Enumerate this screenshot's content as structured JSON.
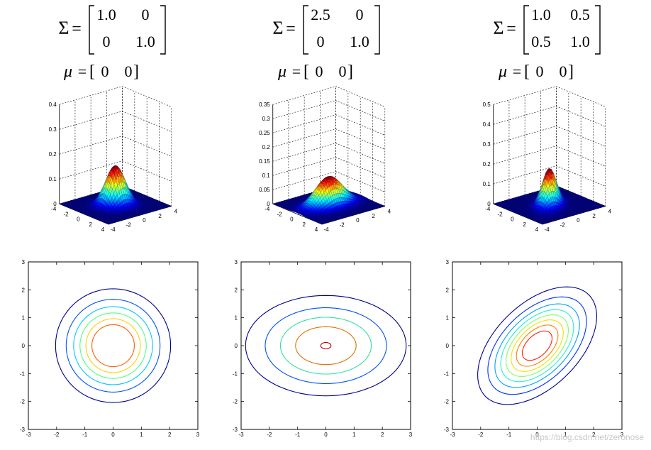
{
  "chart_data": [
    {
      "type": "surface",
      "panel": "top-left",
      "sigma_symbol": "Σ",
      "mu_symbol": "μ",
      "sigma": [
        [
          "1.0",
          "0"
        ],
        [
          "0",
          "1.0"
        ]
      ],
      "mu": [
        "0",
        "0"
      ],
      "cov": [
        [
          1.0,
          0.0
        ],
        [
          0.0,
          1.0
        ]
      ],
      "mean": [
        0,
        0
      ],
      "zlim": [
        0,
        0.4
      ],
      "zticks": [
        "0",
        "0.1",
        "0.2",
        "0.3",
        "0.4"
      ],
      "xticks": [
        "-4",
        "-2",
        "0",
        "2",
        "4"
      ],
      "yticks": [
        "-4",
        "-2",
        "0",
        "2",
        "4"
      ],
      "colormap": "jet",
      "grid": true
    },
    {
      "type": "surface",
      "panel": "top-middle",
      "sigma_symbol": "Σ",
      "mu_symbol": "μ",
      "sigma": [
        [
          "2.5",
          "0"
        ],
        [
          "0",
          "1.0"
        ]
      ],
      "mu": [
        "0",
        "0"
      ],
      "cov": [
        [
          2.5,
          0.0
        ],
        [
          0.0,
          1.0
        ]
      ],
      "mean": [
        0,
        0
      ],
      "zlim": [
        0,
        0.35
      ],
      "zticks": [
        "0",
        "0.05",
        "0.1",
        "0.15",
        "0.2",
        "0.25",
        "0.3",
        "0.35"
      ],
      "xticks": [
        "-4",
        "-2",
        "0",
        "2",
        "4"
      ],
      "yticks": [
        "-4",
        "-2",
        "0",
        "2",
        "4"
      ],
      "colormap": "jet",
      "grid": true
    },
    {
      "type": "surface",
      "panel": "top-right",
      "sigma_symbol": "Σ",
      "mu_symbol": "μ",
      "sigma": [
        [
          "1.0",
          "0.5"
        ],
        [
          "0.5",
          "1.0"
        ]
      ],
      "mu": [
        "0",
        "0"
      ],
      "cov": [
        [
          1.0,
          0.5
        ],
        [
          0.5,
          1.0
        ]
      ],
      "mean": [
        0,
        0
      ],
      "zlim": [
        0,
        0.5
      ],
      "zticks": [
        "0",
        "0.1",
        "0.2",
        "0.3",
        "0.4",
        "0.5"
      ],
      "xticks": [
        "-4",
        "-2",
        "0",
        "2",
        "4"
      ],
      "yticks": [
        "-4",
        "-2",
        "0",
        "2",
        "4"
      ],
      "colormap": "jet",
      "grid": true
    },
    {
      "type": "contour",
      "panel": "bottom-left",
      "cov": [
        [
          1.0,
          0.0
        ],
        [
          0.0,
          1.0
        ]
      ],
      "mean": [
        0,
        0
      ],
      "xlim": [
        -3,
        3
      ],
      "ylim": [
        -3,
        3
      ],
      "xticks": [
        "-3",
        "-2",
        "-1",
        "0",
        "1",
        "2",
        "3"
      ],
      "yticks": [
        "-3",
        "-2",
        "-1",
        "0",
        "1",
        "2",
        "3"
      ],
      "levels": [
        0.02,
        0.04,
        0.06,
        0.08,
        0.1,
        0.12
      ],
      "level_colors": [
        "#00008f",
        "#0050ff",
        "#00c8ff",
        "#50ff80",
        "#ffd000",
        "#ff6000",
        "#c00000"
      ]
    },
    {
      "type": "contour",
      "panel": "bottom-middle",
      "cov": [
        [
          2.5,
          0.0
        ],
        [
          0.0,
          1.0
        ]
      ],
      "mean": [
        0,
        0
      ],
      "xlim": [
        -3,
        3
      ],
      "ylim": [
        -3,
        3
      ],
      "xticks": [
        "-3",
        "-2",
        "-1",
        "0",
        "1",
        "2",
        "3"
      ],
      "yticks": [
        "-3",
        "-2",
        "-1",
        "0",
        "1",
        "2",
        "3"
      ],
      "levels": [
        0.02,
        0.04,
        0.06,
        0.08,
        0.1
      ],
      "level_colors": [
        "#00008f",
        "#0050ff",
        "#30e0a0",
        "#e07000",
        "#c00000"
      ]
    },
    {
      "type": "contour",
      "panel": "bottom-right",
      "cov": [
        [
          1.0,
          0.5
        ],
        [
          0.5,
          1.0
        ]
      ],
      "mean": [
        0,
        0
      ],
      "xlim": [
        -3,
        3
      ],
      "ylim": [
        -3,
        3
      ],
      "xticks": [
        "-3",
        "-2",
        "-1",
        "0",
        "1",
        "2",
        "3"
      ],
      "yticks": [
        "-3",
        "-2",
        "-1",
        "0",
        "1",
        "2",
        "3"
      ],
      "levels": [
        0.02,
        0.04,
        0.06,
        0.08,
        0.1,
        0.12,
        0.14,
        0.16
      ],
      "level_colors": [
        "#00008f",
        "#0030ff",
        "#00a0ff",
        "#20f0d0",
        "#80ff60",
        "#f0e000",
        "#ff8000",
        "#ff2000",
        "#a00000"
      ]
    }
  ],
  "watermark": "https://blog.csdn.net/zeronose"
}
